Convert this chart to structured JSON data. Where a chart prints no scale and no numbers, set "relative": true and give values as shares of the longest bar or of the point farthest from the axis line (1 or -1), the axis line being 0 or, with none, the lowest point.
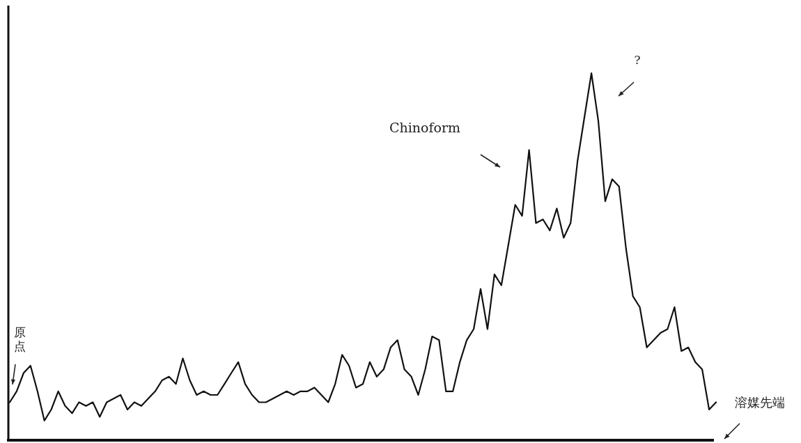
{
  "chart_data": {
    "type": "line",
    "relative": true,
    "color": "#111111",
    "categories": [
      null,
      null,
      null,
      null,
      null,
      null,
      null,
      null,
      null,
      null,
      null,
      null,
      null,
      null,
      null,
      null,
      null,
      null,
      null,
      null,
      null,
      null,
      null,
      null,
      null,
      null,
      null,
      null,
      null,
      null,
      null,
      null,
      null,
      null,
      null,
      null,
      null,
      null,
      null,
      null,
      null,
      null,
      null,
      null,
      null,
      null,
      null,
      null,
      null,
      null,
      null,
      null,
      null,
      null,
      null,
      null,
      null,
      null,
      null,
      null,
      null,
      null,
      null,
      null,
      null,
      null,
      null,
      null,
      null,
      null,
      null,
      null,
      null,
      null,
      null,
      null,
      null,
      null,
      null,
      null,
      null,
      null,
      null,
      null,
      null,
      null,
      null,
      null,
      null,
      null,
      null,
      null,
      null,
      null,
      null,
      null,
      null,
      null,
      null,
      null,
      null,
      null,
      null
    ],
    "values": [
      0.1,
      0.13,
      0.18,
      0.2,
      0.13,
      0.05,
      0.08,
      0.13,
      0.09,
      0.07,
      0.1,
      0.09,
      0.1,
      0.06,
      0.1,
      0.11,
      0.12,
      0.08,
      0.1,
      0.09,
      0.11,
      0.13,
      0.16,
      0.17,
      0.15,
      0.22,
      0.16,
      0.12,
      0.13,
      0.12,
      0.12,
      0.15,
      0.18,
      0.21,
      0.15,
      0.12,
      0.1,
      0.1,
      0.11,
      0.12,
      0.13,
      0.12,
      0.13,
      0.13,
      0.14,
      0.12,
      0.1,
      0.15,
      0.23,
      0.2,
      0.14,
      0.15,
      0.21,
      0.17,
      0.19,
      0.25,
      0.27,
      0.19,
      0.17,
      0.12,
      0.19,
      0.28,
      0.27,
      0.13,
      0.13,
      0.21,
      0.27,
      0.3,
      0.41,
      0.3,
      0.45,
      0.42,
      0.53,
      0.64,
      0.61,
      0.79,
      0.59,
      0.6,
      0.57,
      0.63,
      0.55,
      0.59,
      0.76,
      0.88,
      1,
      0.87,
      0.65,
      0.71,
      0.69,
      0.52,
      0.39,
      0.36,
      0.25,
      0.27,
      0.29,
      0.3,
      0.36,
      0.24,
      0.25,
      0.21,
      0.19,
      0.08,
      0.1
    ],
    "annotations": [
      "原点",
      "Chinoform",
      "?",
      "溶媒先端"
    ]
  }
}
